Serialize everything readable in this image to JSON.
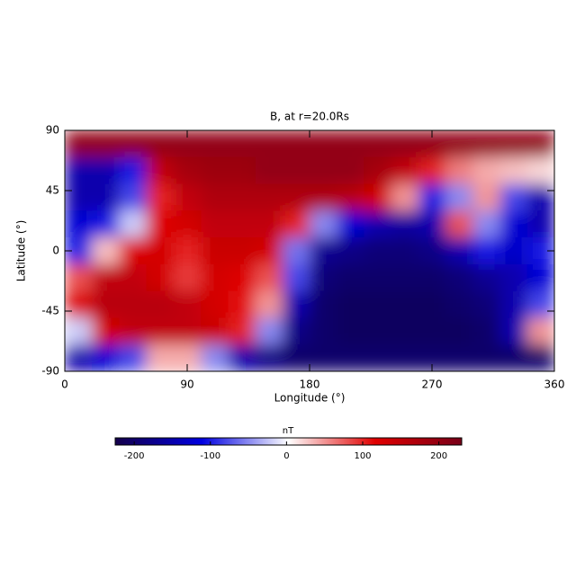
{
  "chart_data": {
    "type": "heatmap",
    "title": "B, at r=20.0Rs",
    "x_label": "Longitude (°)",
    "y_label": "Latitude (°)",
    "x": [
      10,
      30,
      50,
      70,
      90,
      110,
      130,
      150,
      170,
      190,
      210,
      230,
      250,
      270,
      290,
      310,
      330,
      350
    ],
    "y": [
      80,
      60,
      40,
      20,
      0,
      -20,
      -40,
      -60,
      -80
    ],
    "values": [
      [
        200,
        200,
        200,
        200,
        200,
        200,
        200,
        200,
        200,
        200,
        200,
        200,
        200,
        200,
        200,
        200,
        200,
        200
      ],
      [
        -150,
        -150,
        -100,
        150,
        180,
        190,
        190,
        200,
        200,
        200,
        200,
        180,
        150,
        100,
        60,
        40,
        30,
        20
      ],
      [
        -150,
        -150,
        -80,
        100,
        150,
        170,
        170,
        170,
        170,
        170,
        160,
        130,
        50,
        -100,
        -50,
        50,
        -80,
        -150
      ],
      [
        -120,
        -100,
        -20,
        120,
        130,
        150,
        150,
        150,
        100,
        -50,
        -120,
        -150,
        -160,
        -150,
        80,
        -50,
        -120,
        -150
      ],
      [
        -100,
        30,
        120,
        130,
        100,
        140,
        140,
        130,
        -60,
        -170,
        -180,
        -190,
        -190,
        -180,
        -150,
        -100,
        -130,
        -100
      ],
      [
        80,
        150,
        150,
        130,
        90,
        130,
        120,
        80,
        -80,
        -190,
        -200,
        -200,
        -200,
        -200,
        -190,
        -170,
        -150,
        -120
      ],
      [
        120,
        160,
        160,
        160,
        150,
        130,
        110,
        50,
        -150,
        -200,
        -210,
        -210,
        -210,
        -210,
        -200,
        -190,
        -150,
        -80
      ],
      [
        -20,
        130,
        150,
        150,
        150,
        140,
        100,
        -50,
        -180,
        -200,
        -210,
        -210,
        -210,
        -210,
        -210,
        -200,
        -150,
        50
      ],
      [
        -150,
        -120,
        -80,
        40,
        40,
        -50,
        -150,
        -180,
        -200,
        -200,
        -200,
        -200,
        -200,
        -200,
        -200,
        -200,
        -200,
        -200
      ]
    ],
    "xlim": [
      0,
      360
    ],
    "ylim": [
      -90,
      90
    ],
    "xticks": [
      0,
      90,
      180,
      270,
      360
    ],
    "yticks": [
      -90,
      -45,
      0,
      45,
      90
    ],
    "colormap": [
      "#14004a",
      "#0000e0",
      "#ffffff",
      "#e00000",
      "#780018"
    ],
    "colorbar": {
      "label": "nT",
      "lim": [
        -225,
        230
      ],
      "ticks": [
        -200,
        -100,
        0,
        100,
        200
      ]
    }
  }
}
